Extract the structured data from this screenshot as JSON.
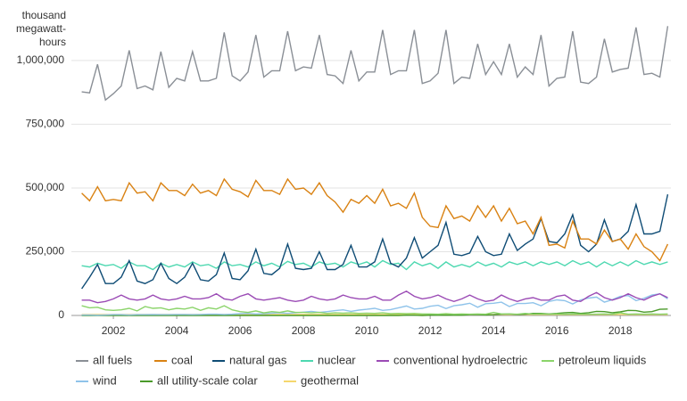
{
  "chart_data": {
    "type": "line",
    "y_label": "thousand megawatt-hours",
    "x": [
      2001,
      2001.25,
      2001.5,
      2001.75,
      2002,
      2002.25,
      2002.5,
      2002.75,
      2003,
      2003.25,
      2003.5,
      2003.75,
      2004,
      2004.25,
      2004.5,
      2004.75,
      2005,
      2005.25,
      2005.5,
      2005.75,
      2006,
      2006.25,
      2006.5,
      2006.75,
      2007,
      2007.25,
      2007.5,
      2007.75,
      2008,
      2008.25,
      2008.5,
      2008.75,
      2009,
      2009.25,
      2009.5,
      2009.75,
      2010,
      2010.25,
      2010.5,
      2010.75,
      2011,
      2011.25,
      2011.5,
      2011.75,
      2012,
      2012.25,
      2012.5,
      2012.75,
      2013,
      2013.25,
      2013.5,
      2013.75,
      2014,
      2014.25,
      2014.5,
      2014.75,
      2015,
      2015.25,
      2015.5,
      2015.75,
      2016,
      2016.25,
      2016.5,
      2016.75,
      2017,
      2017.25,
      2017.5,
      2017.75,
      2018,
      2018.25,
      2018.5,
      2018.75,
      2019,
      2019.25,
      2019.5
    ],
    "xlim": [
      2000.9,
      2019.6
    ],
    "xticks": [
      2002,
      2004,
      2006,
      2008,
      2010,
      2012,
      2014,
      2016,
      2018
    ],
    "ylim": [
      0,
      1150000
    ],
    "yticks": [
      0,
      {
        "value": 250000,
        "label": "250,000"
      },
      {
        "value": 500000,
        "label": "500,000"
      },
      {
        "value": 750000,
        "label": "750,000"
      },
      {
        "value": 1000000,
        "label": "1,000,000"
      }
    ],
    "grid": true,
    "series": [
      {
        "name": "all fuels",
        "color": "#8a8f96",
        "values": [
          877000,
          873000,
          985000,
          845000,
          870000,
          900000,
          1040000,
          890000,
          900000,
          885000,
          1035000,
          895000,
          930000,
          920000,
          1035000,
          920000,
          920000,
          930000,
          1110000,
          940000,
          920000,
          955000,
          1100000,
          935000,
          960000,
          960000,
          1115000,
          960000,
          975000,
          970000,
          1100000,
          945000,
          940000,
          910000,
          1040000,
          920000,
          955000,
          955000,
          1120000,
          945000,
          960000,
          960000,
          1120000,
          910000,
          920000,
          950000,
          1120000,
          910000,
          935000,
          930000,
          1065000,
          945000,
          995000,
          945000,
          1065000,
          935000,
          975000,
          945000,
          1100000,
          900000,
          930000,
          935000,
          1115000,
          915000,
          910000,
          935000,
          1085000,
          955000,
          965000,
          970000,
          1130000,
          945000,
          950000,
          935000,
          1135000
        ]
      },
      {
        "name": "coal",
        "color": "#d98213",
        "values": [
          480000,
          450000,
          505000,
          450000,
          455000,
          450000,
          520000,
          480000,
          485000,
          450000,
          520000,
          490000,
          490000,
          470000,
          515000,
          480000,
          490000,
          470000,
          535000,
          495000,
          485000,
          465000,
          530000,
          490000,
          490000,
          475000,
          535000,
          495000,
          500000,
          475000,
          520000,
          470000,
          445000,
          405000,
          455000,
          440000,
          470000,
          440000,
          495000,
          430000,
          440000,
          420000,
          480000,
          385000,
          350000,
          345000,
          430000,
          380000,
          390000,
          370000,
          430000,
          385000,
          430000,
          370000,
          420000,
          360000,
          370000,
          320000,
          385000,
          275000,
          280000,
          265000,
          370000,
          300000,
          300000,
          280000,
          335000,
          290000,
          300000,
          260000,
          320000,
          270000,
          250000,
          215000,
          280000
        ]
      },
      {
        "name": "natural gas",
        "color": "#0f4c75",
        "values": [
          105000,
          150000,
          200000,
          125000,
          125000,
          150000,
          215000,
          135000,
          125000,
          140000,
          205000,
          145000,
          125000,
          150000,
          205000,
          140000,
          135000,
          160000,
          245000,
          145000,
          140000,
          175000,
          260000,
          165000,
          160000,
          185000,
          280000,
          185000,
          180000,
          185000,
          250000,
          180000,
          180000,
          200000,
          275000,
          190000,
          190000,
          210000,
          300000,
          205000,
          190000,
          225000,
          305000,
          225000,
          250000,
          275000,
          365000,
          240000,
          235000,
          245000,
          310000,
          250000,
          235000,
          240000,
          320000,
          255000,
          280000,
          300000,
          380000,
          290000,
          285000,
          320000,
          395000,
          275000,
          250000,
          280000,
          375000,
          290000,
          300000,
          330000,
          435000,
          320000,
          320000,
          330000,
          475000
        ]
      },
      {
        "name": "nuclear",
        "color": "#4dd8b0",
        "values": [
          195000,
          190000,
          205000,
          195000,
          200000,
          185000,
          210000,
          195000,
          195000,
          180000,
          205000,
          190000,
          200000,
          190000,
          210000,
          195000,
          200000,
          185000,
          210000,
          195000,
          200000,
          190000,
          210000,
          195000,
          205000,
          190000,
          212000,
          200000,
          205000,
          190000,
          210000,
          200000,
          205000,
          190000,
          210000,
          200000,
          210000,
          190000,
          215000,
          200000,
          205000,
          180000,
          210000,
          195000,
          205000,
          185000,
          210000,
          190000,
          200000,
          190000,
          210000,
          195000,
          205000,
          190000,
          210000,
          200000,
          210000,
          195000,
          210000,
          200000,
          210000,
          195000,
          215000,
          200000,
          210000,
          190000,
          210000,
          195000,
          210000,
          195000,
          215000,
          200000,
          210000,
          200000,
          210000
        ]
      },
      {
        "name": "conventional hydroelectric",
        "color": "#9b4bb5",
        "values": [
          60000,
          60000,
          50000,
          55000,
          65000,
          80000,
          65000,
          60000,
          65000,
          80000,
          65000,
          60000,
          65000,
          75000,
          65000,
          65000,
          70000,
          85000,
          65000,
          60000,
          75000,
          85000,
          65000,
          60000,
          65000,
          70000,
          60000,
          55000,
          60000,
          75000,
          65000,
          60000,
          65000,
          80000,
          70000,
          65000,
          65000,
          75000,
          60000,
          60000,
          80000,
          95000,
          75000,
          65000,
          70000,
          80000,
          65000,
          55000,
          65000,
          80000,
          65000,
          55000,
          60000,
          80000,
          65000,
          55000,
          65000,
          70000,
          60000,
          60000,
          75000,
          80000,
          60000,
          55000,
          75000,
          90000,
          70000,
          60000,
          70000,
          85000,
          70000,
          60000,
          75000,
          85000,
          70000
        ]
      },
      {
        "name": "petroleum liquids",
        "color": "#8bd46a",
        "values": [
          38000,
          30000,
          32000,
          22000,
          20000,
          22000,
          28000,
          18000,
          35000,
          28000,
          30000,
          22000,
          28000,
          25000,
          32000,
          20000,
          30000,
          25000,
          38000,
          22000,
          15000,
          12000,
          18000,
          10000,
          15000,
          12000,
          18000,
          12000,
          12000,
          10000,
          12000,
          8000,
          10000,
          9000,
          10000,
          8000,
          9000,
          8000,
          10000,
          7000,
          8000,
          7000,
          8000,
          6000,
          6000,
          5000,
          7000,
          5000,
          6000,
          5000,
          6000,
          5000,
          12000,
          6000,
          6000,
          5000,
          8000,
          5000,
          6000,
          5000,
          6000,
          5000,
          6000,
          5000,
          5000,
          5000,
          6000,
          5000,
          10000,
          5000,
          6000,
          5000,
          6000,
          5000,
          6000
        ]
      },
      {
        "name": "wind",
        "color": "#8fc3ea",
        "values": [
          2000,
          2000,
          1000,
          2000,
          3000,
          3000,
          2000,
          3000,
          3000,
          4000,
          3000,
          3000,
          4000,
          4000,
          3000,
          4000,
          5000,
          5000,
          4000,
          5000,
          7000,
          8000,
          6000,
          7000,
          9000,
          10000,
          8000,
          10000,
          13000,
          16000,
          12000,
          15000,
          19000,
          22000,
          16000,
          21000,
          24000,
          28000,
          20000,
          23000,
          30000,
          37000,
          25000,
          28000,
          36000,
          40000,
          27000,
          38000,
          42000,
          48000,
          32000,
          46000,
          48000,
          52000,
          35000,
          47000,
          47000,
          50000,
          38000,
          55000,
          61000,
          58000,
          45000,
          61000,
          68000,
          72000,
          52000,
          62000,
          75000,
          78000,
          58000,
          67000,
          80000,
          85000,
          65000
        ]
      },
      {
        "name": "all utility-scale colar",
        "color": "#4a9a2a",
        "values": [
          0,
          0,
          0,
          0,
          0,
          0,
          0,
          0,
          0,
          0,
          0,
          0,
          0,
          0,
          0,
          0,
          0,
          0,
          0,
          0,
          0,
          0,
          0,
          0,
          0,
          0,
          0,
          0,
          0,
          0,
          0,
          0,
          0,
          0,
          0,
          0,
          0,
          0,
          0,
          0,
          0,
          1000,
          1000,
          0,
          1000,
          1000,
          1000,
          1000,
          1000,
          3000,
          3000,
          2000,
          3000,
          5000,
          6000,
          4000,
          5000,
          8000,
          8000,
          6000,
          8000,
          11000,
          12000,
          8000,
          11000,
          16000,
          15000,
          11000,
          14000,
          20000,
          19000,
          13000,
          15000,
          24000,
          25000
        ]
      },
      {
        "name": "geothermal",
        "color": "#f5d76e",
        "values": [
          4000,
          4000,
          4000,
          4000,
          4000,
          4000,
          4000,
          4000,
          4000,
          4000,
          4000,
          4000,
          4000,
          4000,
          4000,
          4000,
          4000,
          4000,
          4000,
          4000,
          4000,
          4000,
          4000,
          4000,
          4000,
          4000,
          4000,
          4000,
          4000,
          4000,
          4000,
          4000,
          4000,
          4000,
          4000,
          4000,
          4000,
          4000,
          4000,
          4000,
          4000,
          4000,
          4000,
          4000,
          4000,
          4000,
          4000,
          4000,
          4000,
          4000,
          4000,
          4000,
          4000,
          4000,
          4000,
          4000,
          4000,
          4000,
          4000,
          4000,
          4000,
          4000,
          4000,
          4000,
          4000,
          4000,
          4000,
          4000,
          4000,
          4000,
          4000,
          4000,
          4000,
          4000,
          4000
        ]
      }
    ]
  }
}
